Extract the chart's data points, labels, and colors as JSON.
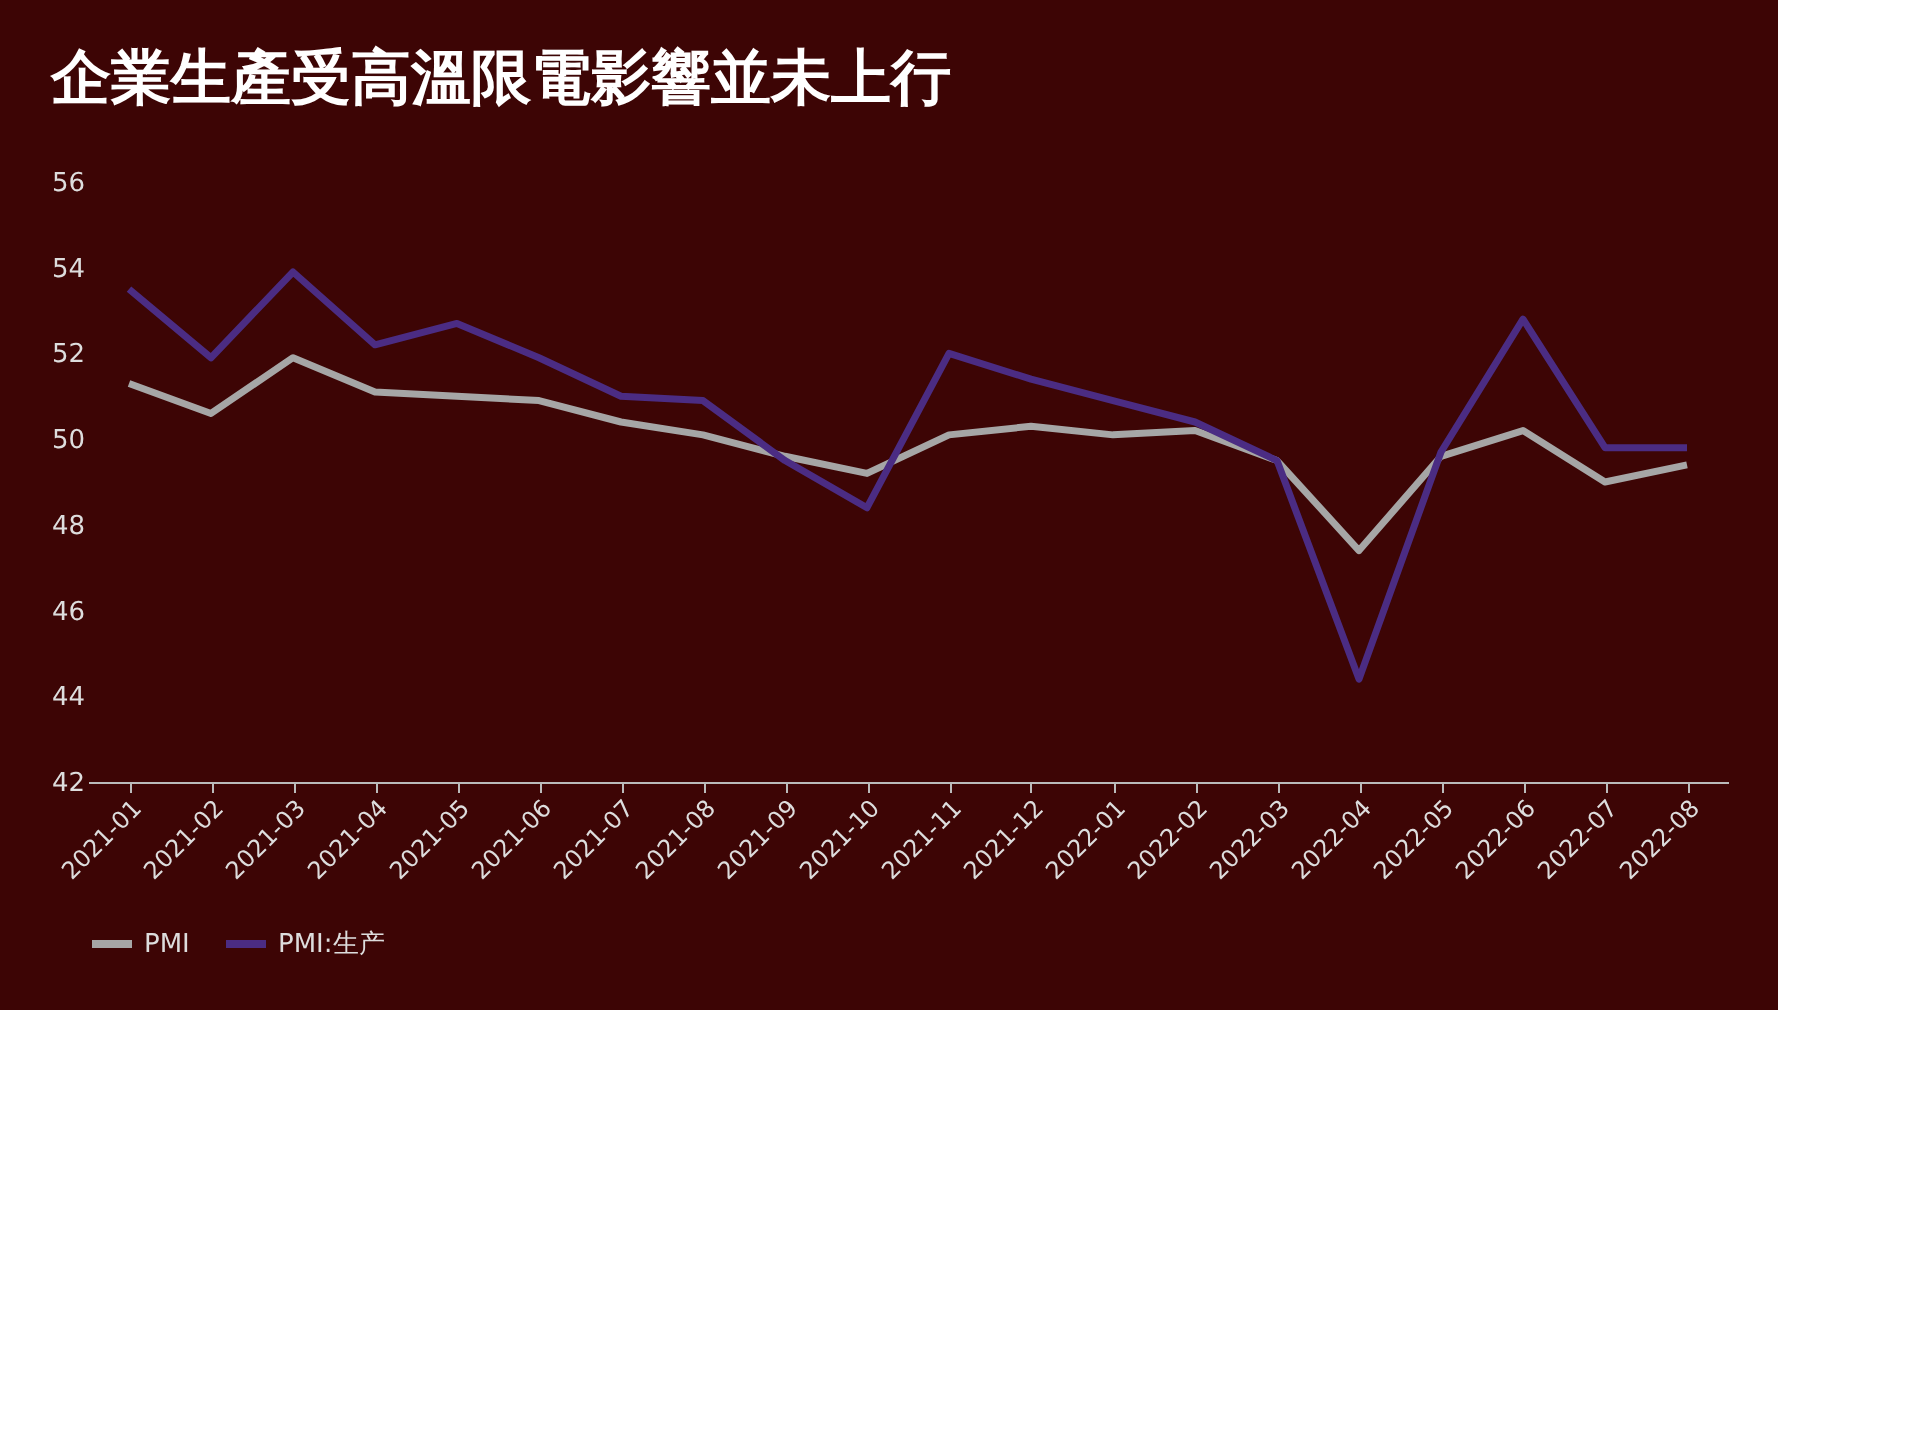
{
  "chart_data": {
    "type": "line",
    "title": "企業生產受高溫限電影響並未上行",
    "categories": [
      "2021-01",
      "2021-02",
      "2021-03",
      "2021-04",
      "2021-05",
      "2021-06",
      "2021-07",
      "2021-08",
      "2021-09",
      "2021-10",
      "2021-11",
      "2021-12",
      "2022-01",
      "2022-02",
      "2022-03",
      "2022-04",
      "2022-05",
      "2022-06",
      "2022-07",
      "2022-08"
    ],
    "series": [
      {
        "name": "PMI",
        "color": "#a6a6a6",
        "values": [
          51.3,
          50.6,
          51.9,
          51.1,
          51.0,
          50.9,
          50.4,
          50.1,
          49.6,
          49.2,
          50.1,
          50.3,
          50.1,
          50.2,
          49.5,
          47.4,
          49.6,
          50.2,
          49.0,
          49.4
        ]
      },
      {
        "name": "PMI:生产",
        "color": "#4b2c83",
        "values": [
          53.5,
          51.9,
          53.9,
          52.2,
          52.7,
          51.9,
          51.0,
          50.9,
          49.5,
          48.4,
          52.0,
          51.4,
          50.9,
          50.4,
          49.5,
          44.4,
          49.7,
          52.8,
          49.8,
          49.8
        ]
      }
    ],
    "ylim": [
      42,
      56
    ],
    "yticks": [
      42,
      44,
      46,
      48,
      50,
      52,
      54,
      56
    ],
    "grid": false,
    "legend": "bottom",
    "marker": "none",
    "line_style": "solid"
  }
}
